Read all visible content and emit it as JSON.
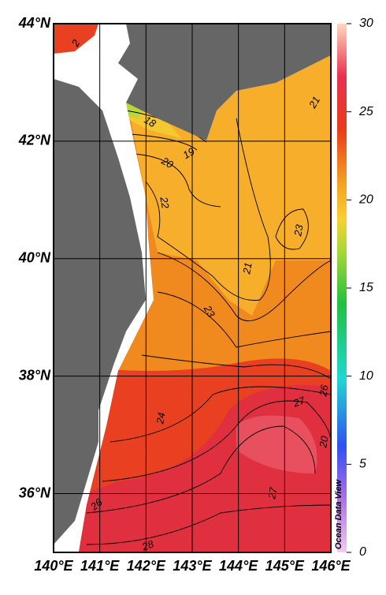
{
  "map": {
    "xticks": [
      {
        "value": 140,
        "label": "140°E"
      },
      {
        "value": 141,
        "label": "141°E"
      },
      {
        "value": 142,
        "label": "142°E"
      },
      {
        "value": 143,
        "label": "143°E"
      },
      {
        "value": 144,
        "label": "144°E"
      },
      {
        "value": 145,
        "label": "145°E"
      },
      {
        "value": 146,
        "label": "146°E"
      }
    ],
    "yticks": [
      {
        "value": 36,
        "label": "36°N"
      },
      {
        "value": 38,
        "label": "38°N"
      },
      {
        "value": 40,
        "label": "40°N"
      },
      {
        "value": 42,
        "label": "42°N"
      },
      {
        "value": 44,
        "label": "44°N"
      }
    ],
    "xlim": [
      140,
      146
    ],
    "ylim": [
      35,
      44
    ],
    "colorbar": {
      "lim": [
        0,
        30
      ],
      "ticks": [
        0,
        5,
        10,
        15,
        20,
        25,
        30
      ]
    },
    "contour_labels": [
      2,
      21,
      18,
      19,
      20,
      22,
      23,
      21,
      23,
      27,
      24,
      20,
      27,
      26,
      28,
      26
    ],
    "credit": "Ocean Data View"
  }
}
